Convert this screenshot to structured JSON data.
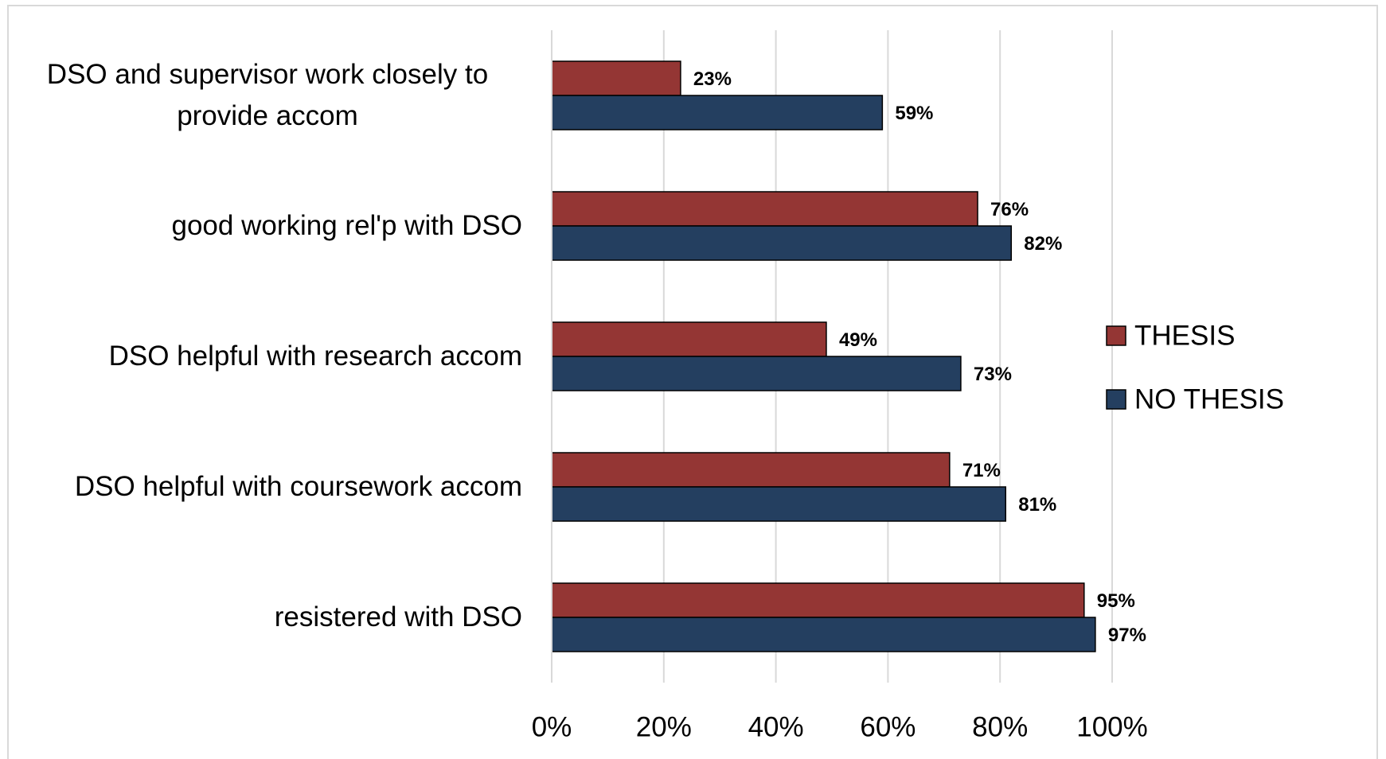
{
  "chart_data": {
    "type": "bar",
    "orientation": "horizontal",
    "categories": [
      "DSO and supervisor work closely to provide accom",
      "good working rel'p with DSO",
      "DSO helpful with research accom",
      "DSO helpful with coursework accom",
      "resistered with DSO"
    ],
    "series": [
      {
        "name": "THESIS",
        "color": "#943634",
        "values": [
          23,
          76,
          49,
          71,
          95
        ],
        "value_labels": [
          "23%",
          "76%",
          "49%",
          "71%",
          "95%"
        ]
      },
      {
        "name": "NO THESIS",
        "color": "#243f60",
        "values": [
          59,
          82,
          73,
          81,
          97
        ],
        "value_labels": [
          "59%",
          "82%",
          "73%",
          "81%",
          "97%"
        ]
      }
    ],
    "xlim": [
      0,
      100
    ],
    "xticks": [
      {
        "value": 0,
        "label": "0%"
      },
      {
        "value": 20,
        "label": "20%"
      },
      {
        "value": 40,
        "label": "40%"
      },
      {
        "value": 60,
        "label": "60%"
      },
      {
        "value": 80,
        "label": "80%"
      },
      {
        "value": 100,
        "label": "100%"
      }
    ],
    "grid": true,
    "legend": "right"
  }
}
